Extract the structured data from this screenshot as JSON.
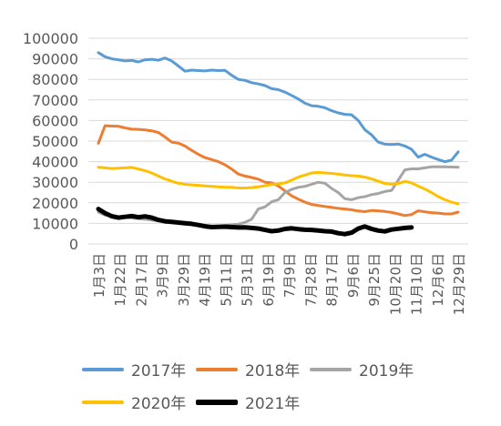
{
  "chart_data": {
    "type": "line",
    "title": "",
    "xlabel": "",
    "ylabel": "",
    "ylim": [
      0,
      100000
    ],
    "y_ticks": [
      "0",
      "10000",
      "20000",
      "30000",
      "40000",
      "50000",
      "60000",
      "70000",
      "80000",
      "90000",
      "100000"
    ],
    "grid": true,
    "legend_position": "bottom",
    "x_tick_labels": [
      "1月3日",
      "1月22日",
      "2月17日",
      "3月9日",
      "3月29日",
      "4月19日",
      "5月11日",
      "5月31日",
      "6月19日",
      "7月9日",
      "7月28日",
      "8月17日",
      "9月6日",
      "9月25日",
      "10月20日",
      "11月10日",
      "12月6日",
      "12月29日"
    ],
    "series": [
      {
        "name": "2017年",
        "color": "#5B9BD5",
        "width": 3,
        "values": [
          93000,
          91000,
          90000,
          89500,
          89000,
          89200,
          88500,
          89500,
          89800,
          89300,
          90400,
          89000,
          86500,
          84000,
          84500,
          84300,
          84100,
          84500,
          84300,
          84400,
          82000,
          80000,
          79500,
          78400,
          77800,
          77000,
          75500,
          75000,
          73800,
          72200,
          70500,
          68400,
          67200,
          66900,
          66200,
          64800,
          63700,
          63000,
          62800,
          60000,
          55500,
          53000,
          49500,
          48500,
          48300,
          48600,
          47600,
          46000,
          42200,
          43600,
          42200,
          41000,
          40000,
          40700,
          44800
        ]
      },
      {
        "name": "2018年",
        "color": "#ED7D31",
        "width": 3,
        "values": [
          49000,
          57500,
          57300,
          57200,
          56400,
          55800,
          55700,
          55400,
          55000,
          54200,
          52000,
          49500,
          49000,
          47600,
          45500,
          43600,
          42000,
          41000,
          40000,
          38500,
          36400,
          34000,
          33000,
          32300,
          31500,
          30000,
          29700,
          28200,
          25800,
          23400,
          21800,
          20300,
          19200,
          18700,
          18200,
          17800,
          17300,
          17000,
          16600,
          16000,
          15700,
          16300,
          16100,
          15800,
          15300,
          14600,
          13800,
          14300,
          16100,
          15600,
          15200,
          15000,
          14600,
          14600,
          15500
        ]
      },
      {
        "name": "2019年",
        "color": "#A5A5A5",
        "width": 3,
        "values": [
          15500,
          14000,
          13500,
          13200,
          12900,
          12600,
          12300,
          12000,
          11600,
          11200,
          11000,
          10600,
          10300,
          10000,
          9600,
          9300,
          9000,
          8700,
          8800,
          9000,
          9300,
          9600,
          10500,
          12000,
          17000,
          18000,
          20500,
          21500,
          25000,
          26500,
          27500,
          28000,
          29000,
          30000,
          29500,
          27000,
          25000,
          22000,
          21500,
          22500,
          23000,
          24000,
          24500,
          25500,
          26000,
          31000,
          36000,
          36500,
          36500,
          37000,
          37500,
          37500,
          37500,
          37400,
          37300
        ]
      },
      {
        "name": "2020年",
        "color": "#FFC000",
        "width": 3,
        "values": [
          37300,
          37000,
          36700,
          36800,
          37000,
          37200,
          36400,
          35600,
          34500,
          33000,
          31600,
          30500,
          29500,
          29000,
          28700,
          28500,
          28200,
          28000,
          27800,
          27600,
          27500,
          27200,
          27200,
          27400,
          27800,
          28300,
          28900,
          29200,
          29700,
          31000,
          32500,
          33500,
          34500,
          34800,
          34500,
          34300,
          34000,
          33500,
          33200,
          33000,
          32500,
          31600,
          30500,
          29400,
          29100,
          29400,
          30400,
          29700,
          28100,
          26700,
          25000,
          23000,
          21500,
          20300,
          19500
        ]
      },
      {
        "name": "2021年",
        "color": "#000000",
        "width": 5,
        "values": [
          17000,
          15000,
          13500,
          12800,
          13200,
          13600,
          13000,
          13400,
          12800,
          11700,
          11000,
          10700,
          10400,
          10100,
          9800,
          9200,
          8600,
          8200,
          8300,
          8400,
          8200,
          8000,
          8100,
          7800,
          7500,
          6800,
          6200,
          6500,
          7300,
          7600,
          7200,
          6900,
          6800,
          6500,
          6200,
          6000,
          5200,
          4800,
          5500,
          7500,
          8500,
          7300,
          6500,
          6100,
          7000,
          7400,
          7800,
          8000
        ]
      }
    ]
  }
}
